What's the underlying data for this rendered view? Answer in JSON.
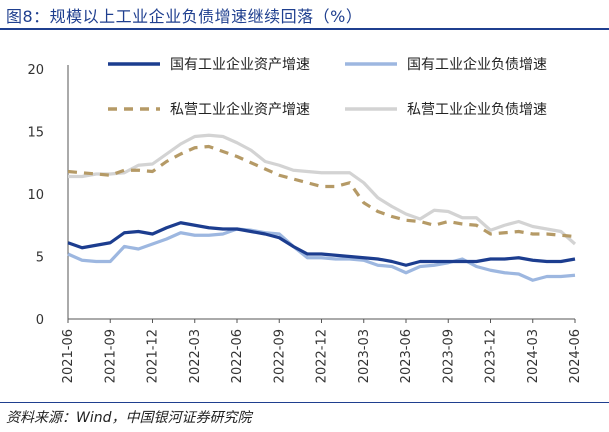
{
  "figure": {
    "title": "图8：规模以上工业企业负债增速继续回落（%）",
    "source": "资料来源：Wind，中国银河证券研究院"
  },
  "chart_data": {
    "type": "line",
    "xlabel": "",
    "ylabel": "",
    "ylim": [
      0,
      20
    ],
    "yticks": [
      0,
      5,
      10,
      15,
      20
    ],
    "x": [
      "2021-06",
      "2021-07",
      "2021-08",
      "2021-09",
      "2021-10",
      "2021-11",
      "2021-12",
      "2022-01",
      "2022-02",
      "2022-03",
      "2022-04",
      "2022-05",
      "2022-06",
      "2022-07",
      "2022-08",
      "2022-09",
      "2022-10",
      "2022-11",
      "2022-12",
      "2023-01",
      "2023-02",
      "2023-03",
      "2023-04",
      "2023-05",
      "2023-06",
      "2023-07",
      "2023-08",
      "2023-09",
      "2023-10",
      "2023-11",
      "2023-12",
      "2024-01",
      "2024-02",
      "2024-03",
      "2024-04",
      "2024-05",
      "2024-06"
    ],
    "xtick_labels": [
      "2021-06",
      "2021-09",
      "2021-12",
      "2022-03",
      "2022-06",
      "2022-09",
      "2022-12",
      "2023-03",
      "2023-06",
      "2023-09",
      "2023-12",
      "2024-03",
      "2024-06"
    ],
    "legend_position": "top",
    "series": [
      {
        "name": "国有工业企业资产增速",
        "color": "#1c3d8f",
        "style": "solid",
        "values": [
          6.1,
          5.7,
          5.9,
          6.1,
          6.9,
          7.0,
          6.8,
          7.3,
          7.7,
          7.5,
          7.3,
          7.2,
          7.2,
          7.0,
          6.8,
          6.5,
          5.8,
          5.2,
          5.2,
          5.1,
          5.0,
          4.9,
          4.8,
          4.6,
          4.3,
          4.6,
          4.6,
          4.6,
          4.6,
          4.6,
          4.8,
          4.8,
          4.9,
          4.7,
          4.6,
          4.6,
          4.8
        ]
      },
      {
        "name": "国有工业企业负债增速",
        "color": "#9db7e0",
        "style": "solid",
        "values": [
          5.2,
          4.7,
          4.6,
          4.6,
          5.8,
          5.6,
          6.0,
          6.4,
          6.9,
          6.7,
          6.7,
          6.8,
          7.2,
          7.1,
          6.9,
          6.8,
          5.8,
          4.9,
          4.9,
          4.8,
          4.8,
          4.7,
          4.3,
          4.2,
          3.7,
          4.2,
          4.3,
          4.5,
          4.8,
          4.2,
          3.9,
          3.7,
          3.6,
          3.1,
          3.4,
          3.4,
          3.5
        ]
      },
      {
        "name": "私营工业企业资产增速",
        "color": "#b59a66",
        "style": "dashed",
        "values": [
          11.8,
          11.7,
          11.6,
          11.5,
          11.9,
          11.9,
          11.8,
          12.6,
          13.2,
          13.7,
          13.8,
          13.4,
          13.0,
          12.5,
          12.0,
          11.5,
          11.2,
          10.9,
          10.6,
          10.6,
          10.9,
          9.3,
          8.6,
          8.2,
          7.9,
          7.8,
          7.5,
          7.8,
          7.6,
          7.5,
          6.8,
          6.9,
          7.0,
          6.8,
          6.8,
          6.7,
          6.6
        ]
      },
      {
        "name": "私营工业企业负债增速",
        "color": "#d3d3d3",
        "style": "solid",
        "values": [
          11.4,
          11.4,
          11.6,
          11.6,
          11.7,
          12.3,
          12.4,
          13.2,
          14.0,
          14.6,
          14.7,
          14.6,
          14.1,
          13.5,
          12.6,
          12.3,
          11.9,
          11.8,
          11.7,
          11.7,
          11.7,
          10.9,
          9.7,
          9.0,
          8.4,
          8.0,
          8.7,
          8.6,
          8.1,
          8.1,
          7.1,
          7.5,
          7.8,
          7.4,
          7.2,
          7.0,
          6.0
        ]
      }
    ]
  }
}
